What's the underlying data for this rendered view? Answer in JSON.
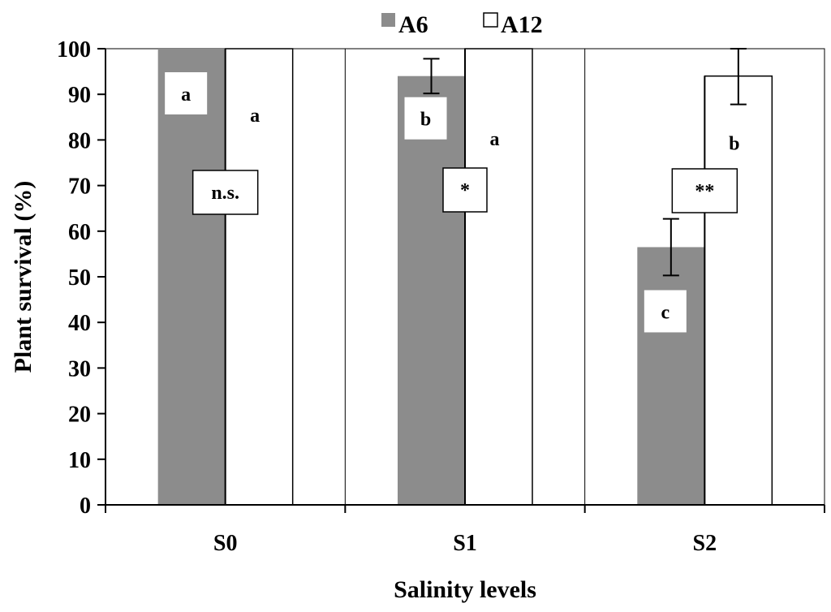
{
  "chart_data": {
    "type": "bar",
    "title": "",
    "xlabel": "Salinity levels",
    "ylabel": "Plant survival (%)",
    "ylim": [
      0,
      100
    ],
    "yticks": [
      "0",
      "10",
      "20",
      "30",
      "40",
      "50",
      "60",
      "70",
      "80",
      "90",
      "100"
    ],
    "grid": false,
    "legend": "top-center",
    "categories": [
      "S0",
      "S1",
      "S2"
    ],
    "series": [
      {
        "name": "A6",
        "color": "#8c8c8c",
        "values": [
          100,
          94,
          56.5
        ],
        "error": [
          0,
          3.8,
          6.2
        ],
        "letters": [
          "a",
          "b",
          "c"
        ]
      },
      {
        "name": "A12",
        "color": "#ffffff",
        "values": [
          100,
          100,
          94
        ],
        "error": [
          0,
          0,
          6.2
        ],
        "letters": [
          "a",
          "a",
          "b"
        ]
      }
    ],
    "annotations": [
      "n.s.",
      "*",
      "**"
    ]
  }
}
